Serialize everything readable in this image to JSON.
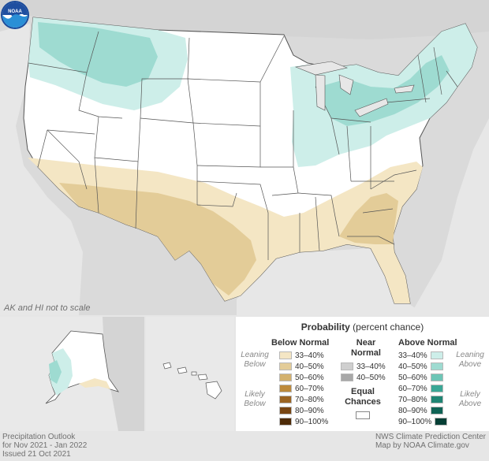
{
  "map": {
    "scale_note": "AK and HI not to scale",
    "colors": {
      "land_outside": "#d9d9d9",
      "water": "#e4e4e4",
      "us_land": "#ffffff",
      "borders": "#555555",
      "above_33_40": "#cdeee9",
      "above_40_50": "#9edbd1",
      "below_33_40": "#f4e6c4",
      "below_40_50": "#e3cc98"
    }
  },
  "legend": {
    "title_bold": "Probability",
    "title_rest": "(percent chance)",
    "below_head": "Below Normal",
    "near_head": "Near Normal",
    "above_head": "Above Normal",
    "leaning_below": "Leaning Below",
    "likely_below": "Likely Below",
    "leaning_above": "Leaning Above",
    "likely_above": "Likely Above",
    "equal_chances": "Equal Chances",
    "below": [
      {
        "label": "33–40%",
        "color": "#f4e6c4"
      },
      {
        "label": "40–50%",
        "color": "#e3cc98"
      },
      {
        "label": "50–60%",
        "color": "#d3b16e"
      },
      {
        "label": "60–70%",
        "color": "#bd8a3c"
      },
      {
        "label": "70–80%",
        "color": "#9b6422"
      },
      {
        "label": "80–90%",
        "color": "#784512"
      },
      {
        "label": "90–100%",
        "color": "#4e2b08"
      }
    ],
    "near": [
      {
        "label": "33–40%",
        "color": "#cfcfcf"
      },
      {
        "label": "40–50%",
        "color": "#a8a8a8"
      }
    ],
    "above": [
      {
        "label": "33–40%",
        "color": "#cdeee9"
      },
      {
        "label": "40–50%",
        "color": "#9edbd1"
      },
      {
        "label": "50–60%",
        "color": "#6dc5b6"
      },
      {
        "label": "60–70%",
        "color": "#3aa796"
      },
      {
        "label": "70–80%",
        "color": "#1f8574"
      },
      {
        "label": "80–90%",
        "color": "#0f6355"
      },
      {
        "label": "90–100%",
        "color": "#063f35"
      }
    ]
  },
  "footer": {
    "left_line1": "Precipitation Outlook",
    "left_line2": "for Nov 2021 - Jan 2022",
    "left_line3": "Issued 21 Oct 2021",
    "right_line1": "NWS Climate Prediction Center",
    "right_line2": "Map by NOAA Climate.gov"
  }
}
